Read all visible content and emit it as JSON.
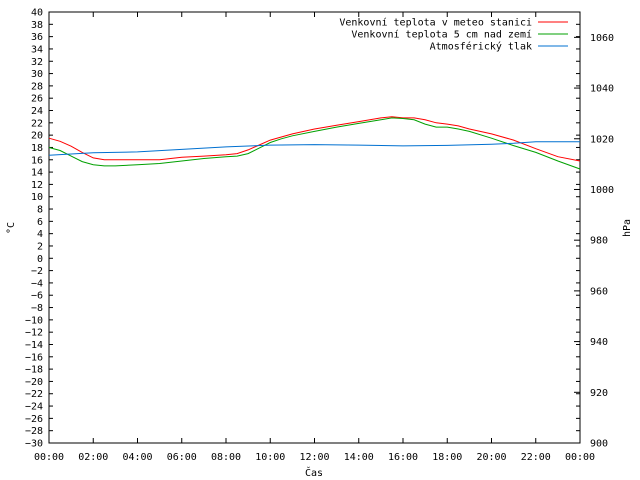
{
  "chart_data": {
    "type": "line",
    "xlabel": "Čas",
    "ylabel": "°C",
    "y2label": "hPa",
    "x_ticks": [
      "00:00",
      "02:00",
      "04:00",
      "06:00",
      "08:00",
      "10:00",
      "12:00",
      "14:00",
      "16:00",
      "18:00",
      "20:00",
      "22:00",
      "00:00"
    ],
    "x_range_hours": [
      0,
      24
    ],
    "ylim": [
      -30,
      40
    ],
    "y_tick_step": 2,
    "y2lim": [
      900,
      1070
    ],
    "y2_ticks": [
      900,
      920,
      940,
      960,
      980,
      1000,
      1020,
      1040,
      1060
    ],
    "grid": false,
    "legend_placement": "top-right",
    "series": [
      {
        "name": "Venkovní teplota v meteo stanici",
        "color": "#ff0000",
        "axis": "left",
        "x_hours": [
          0,
          0.5,
          1.0,
          1.5,
          2.0,
          2.5,
          3,
          4,
          5,
          6,
          7,
          8,
          8.5,
          9,
          9.5,
          10,
          10.5,
          11,
          12,
          13,
          14,
          15,
          15.5,
          16,
          16.5,
          17,
          17.5,
          18,
          18.5,
          19,
          20,
          21,
          22,
          23,
          24
        ],
        "values": [
          19.5,
          19.0,
          18.2,
          17.2,
          16.3,
          16.0,
          16.0,
          16.0,
          16.0,
          16.4,
          16.6,
          16.8,
          17.0,
          17.6,
          18.4,
          19.2,
          19.7,
          20.2,
          21.0,
          21.6,
          22.2,
          22.8,
          23.0,
          22.8,
          22.8,
          22.5,
          22.0,
          21.8,
          21.5,
          21.0,
          20.2,
          19.2,
          17.8,
          16.5,
          15.8
        ]
      },
      {
        "name": "Venkovní teplota 5 cm nad zemí",
        "color": "#00a000",
        "axis": "left",
        "x_hours": [
          0,
          0.5,
          1.0,
          1.5,
          2.0,
          2.5,
          3,
          4,
          5,
          6,
          7,
          8,
          8.5,
          9,
          9.5,
          10,
          10.5,
          11,
          12,
          13,
          14,
          15,
          15.5,
          16,
          16.5,
          17,
          17.5,
          18,
          18.5,
          19,
          20,
          21,
          22,
          23,
          24
        ],
        "values": [
          18.0,
          17.5,
          16.6,
          15.7,
          15.2,
          15.0,
          15.0,
          15.2,
          15.4,
          15.8,
          16.2,
          16.5,
          16.6,
          17.0,
          17.9,
          18.8,
          19.4,
          19.9,
          20.6,
          21.3,
          21.9,
          22.5,
          22.8,
          22.7,
          22.5,
          21.8,
          21.3,
          21.3,
          21.0,
          20.6,
          19.5,
          18.3,
          17.2,
          15.8,
          14.5
        ]
      },
      {
        "name": "Atmosférický tlak",
        "color": "#0070d0",
        "axis": "right",
        "x_hours": [
          0,
          2,
          4,
          6,
          8,
          10,
          12,
          14,
          16,
          18,
          20,
          21,
          22,
          24
        ],
        "values": [
          1013.5,
          1014.5,
          1014.8,
          1015.8,
          1016.8,
          1017.5,
          1017.7,
          1017.5,
          1017.2,
          1017.4,
          1017.8,
          1018.2,
          1018.8,
          1018.8
        ]
      }
    ]
  }
}
